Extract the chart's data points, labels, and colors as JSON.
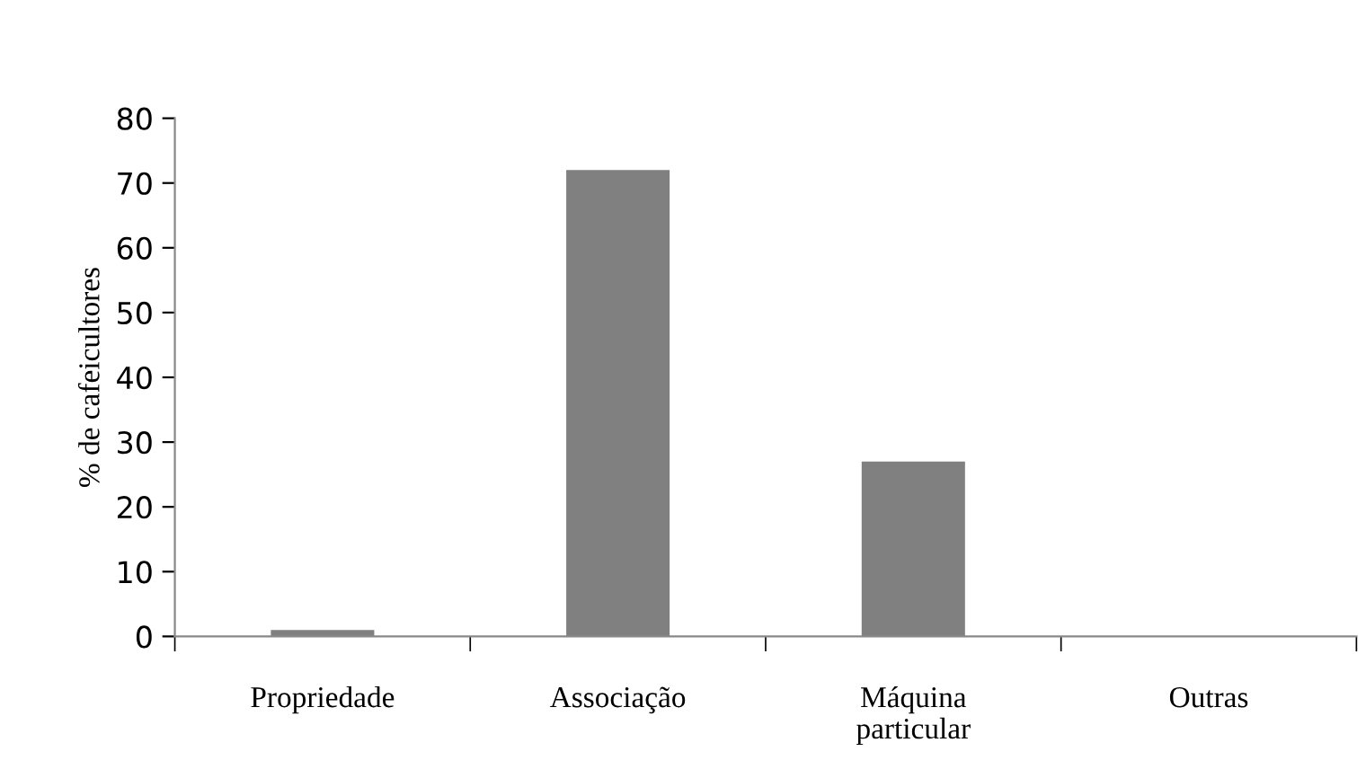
{
  "chart_data": {
    "type": "bar",
    "ylabel": "% de cafeicultores",
    "categories": [
      "Propriedade",
      "Associação",
      "Máquina\nparticular",
      "Outras"
    ],
    "values": [
      1,
      72,
      27,
      0
    ],
    "color": "#808080",
    "ylim": [
      0,
      80
    ],
    "yticks": [
      0,
      10,
      20,
      30,
      40,
      50,
      60,
      70,
      80
    ],
    "grid": false
  }
}
